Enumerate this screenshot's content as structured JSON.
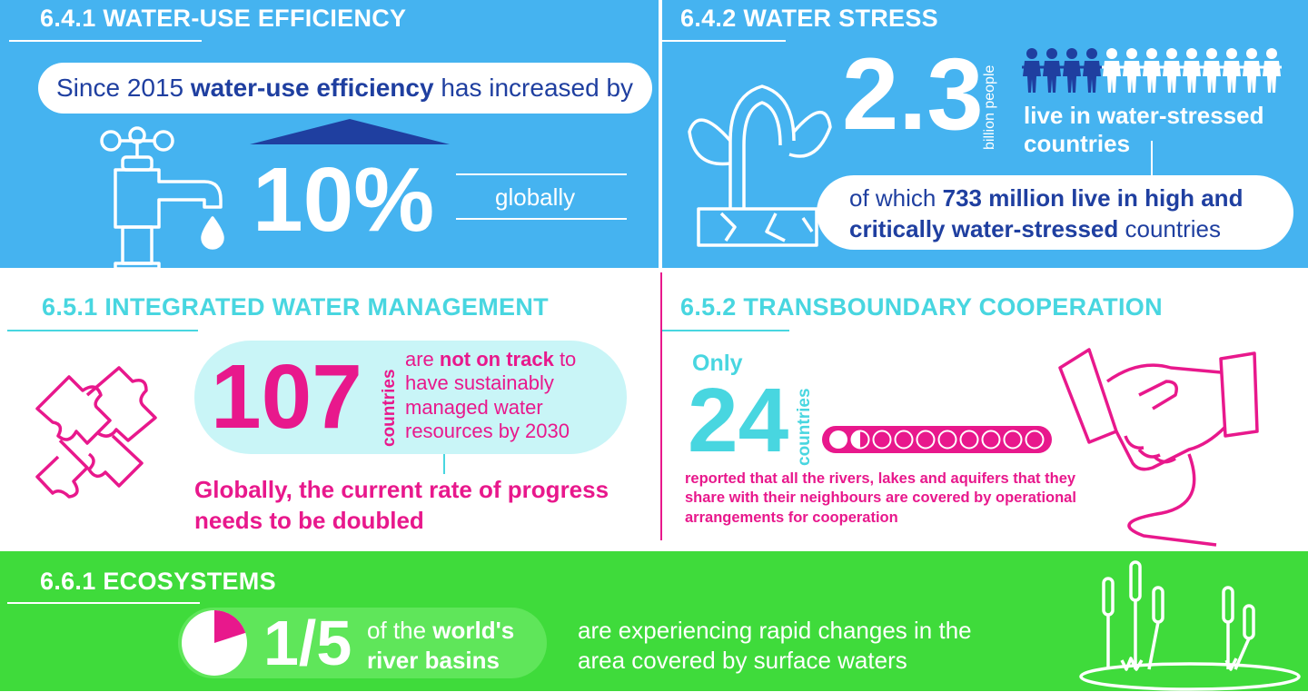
{
  "s641": {
    "title": "6.4.1 WATER-USE EFFICIENCY",
    "pill_text_a": "Since 2015 ",
    "pill_text_b": "water-use efficiency",
    "pill_text_c": " has increased by",
    "value": "10%",
    "value_level": 0.1,
    "scope": "globally"
  },
  "s642": {
    "title": "6.4.2 WATER STRESS",
    "value": "2.3",
    "unit": "billion people",
    "people_total": 13,
    "people_highlighted": 4,
    "desc": "live in water-stressed countries",
    "pill_a": "of which ",
    "pill_b": "733 million live in high and critically water-stressed",
    "pill_c": " countries"
  },
  "s651": {
    "title": "6.5.1 INTEGRATED WATER MANAGEMENT",
    "value": "107",
    "unit": "countries",
    "text_a": "are ",
    "text_b": "not on track",
    "text_c": " to have sustainably managed water resources by 2030",
    "note": "Globally, the current rate of progress needs to be doubled"
  },
  "s652": {
    "title": "6.5.2 TRANSBOUNDARY COOPERATION",
    "prefix": "Only",
    "value": "24",
    "unit": "countries",
    "dots_total": 10,
    "dots_filled": 1.5,
    "desc": "reported that all the rivers, lakes and aquifers that they share with their neighbours are covered by operational arrangements for cooperation"
  },
  "s661": {
    "title": "6.6.1 ECOSYSTEMS",
    "value": "1/5",
    "pie_fraction": 0.2,
    "label_a": "of the ",
    "label_b": "world's river basins",
    "desc": "are experiencing rapid changes in the area covered by surface waters"
  },
  "colors": {
    "blue": "#45b3f0",
    "green": "#3fdb3b",
    "pink": "#e8188c",
    "cyan": "#48d6e0",
    "navy": "#1f3fa0"
  }
}
